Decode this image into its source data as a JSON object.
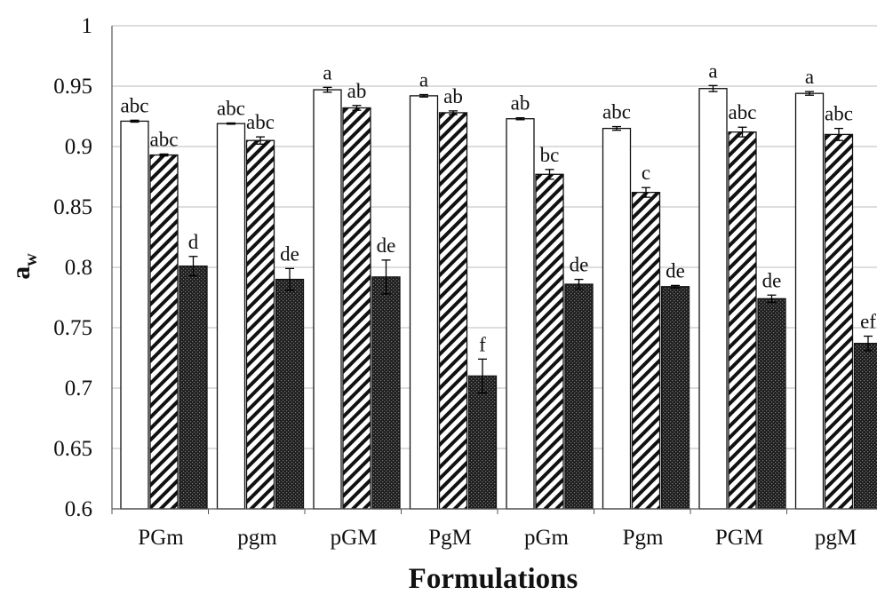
{
  "chart_data": {
    "type": "bar",
    "xlabel": "Formulations",
    "ylabel": "a",
    "ylabel_subscript": "w",
    "ylim": [
      0.6,
      1.0
    ],
    "yticks": [
      0.6,
      0.65,
      0.7,
      0.75,
      0.8,
      0.85,
      0.9,
      0.95,
      1
    ],
    "ytick_labels": [
      "0.6",
      "0.65",
      "0.7",
      "0.75",
      "0.8",
      "0.85",
      "0.9",
      "0.95",
      "1"
    ],
    "grid": true,
    "categories": [
      "PGm",
      "pgm",
      "pGM",
      "PgM",
      "pGm",
      "Pgm",
      "PGM",
      "pgM"
    ],
    "series": [
      {
        "fill": "white",
        "values": [
          0.921,
          0.919,
          0.947,
          0.942,
          0.923,
          0.915,
          0.948,
          0.944
        ],
        "errors": [
          0.0008,
          0.0005,
          0.002,
          0.001,
          0.0008,
          0.0015,
          0.0025,
          0.0015
        ],
        "labels": [
          "abc",
          "abc",
          "a",
          "a",
          "ab",
          "abc",
          "a",
          "a"
        ]
      },
      {
        "fill": "diagonal-hatch",
        "values": [
          0.893,
          0.905,
          0.932,
          0.928,
          0.877,
          0.862,
          0.912,
          0.91
        ],
        "errors": [
          0.0008,
          0.003,
          0.002,
          0.0015,
          0.004,
          0.004,
          0.004,
          0.005
        ],
        "labels": [
          "abc",
          "abc",
          "ab",
          "ab",
          "bc",
          "c",
          "abc",
          "abc"
        ]
      },
      {
        "fill": "dark-stipple",
        "values": [
          0.801,
          0.79,
          0.792,
          0.71,
          0.786,
          0.784,
          0.774,
          0.737
        ],
        "errors": [
          0.008,
          0.009,
          0.014,
          0.014,
          0.004,
          0.001,
          0.003,
          0.006
        ],
        "labels": [
          "d",
          "de",
          "de",
          "f",
          "de",
          "de",
          "de",
          "ef"
        ]
      }
    ]
  },
  "colors": {
    "axis": "#555555",
    "grid": "#bbbbbb",
    "bar_outline": "#111111",
    "hatch": "#111111",
    "dark_fill": "#2a2a2a",
    "text": "#111111"
  }
}
